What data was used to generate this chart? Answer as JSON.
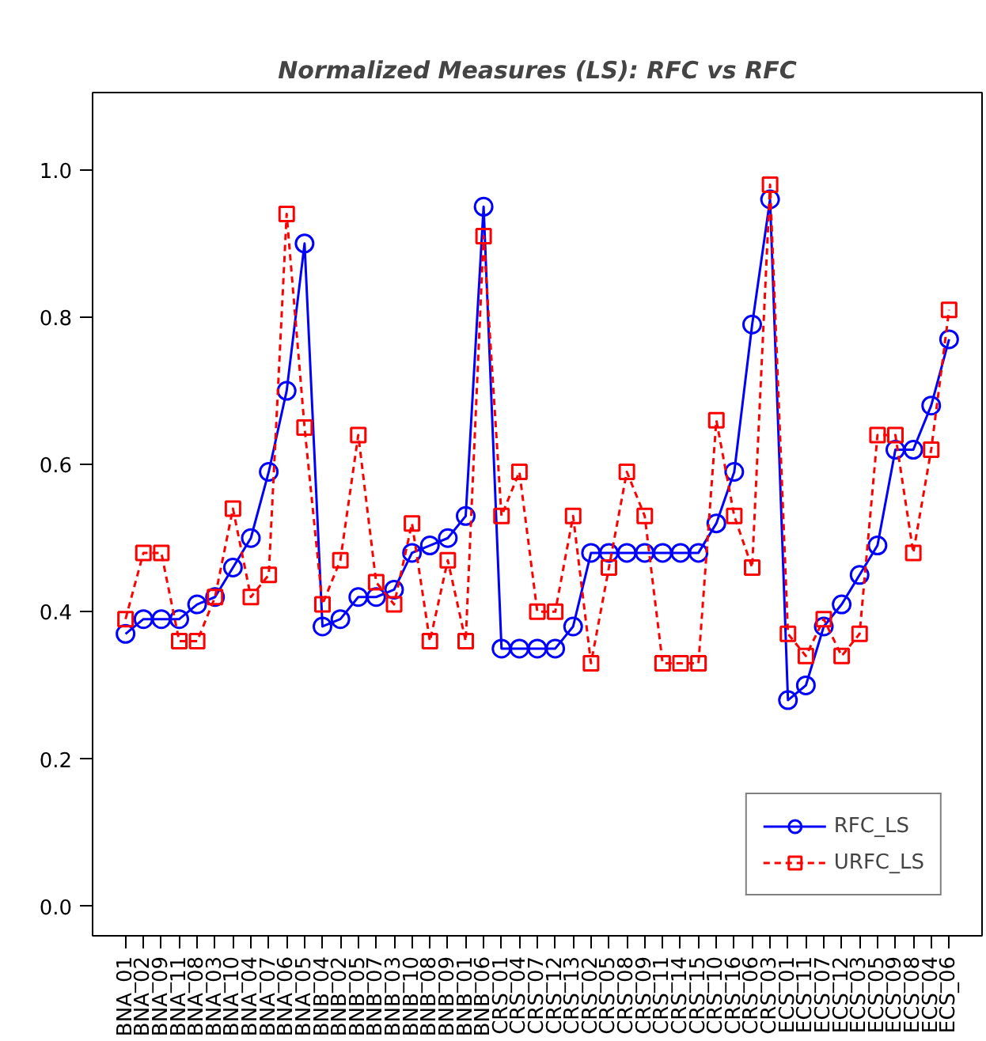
{
  "chart_data": {
    "type": "line",
    "title": "Normalized Measures (LS): RFC vs RFC",
    "categories": [
      "BNA_01",
      "BNA_02",
      "BNA_09",
      "BNA_11",
      "BNA_08",
      "BNA_03",
      "BNA_10",
      "BNA_04",
      "BNA_07",
      "BNA_06",
      "BNA_05",
      "BNB_04",
      "BNB_02",
      "BNB_05",
      "BNB_07",
      "BNB_03",
      "BNB_10",
      "BNB_08",
      "BNB_09",
      "BNB_01",
      "BNB_06",
      "CRS_01",
      "CRS_04",
      "CRS_07",
      "CRS_12",
      "CRS_13",
      "CRS_02",
      "CRS_05",
      "CRS_08",
      "CRS_09",
      "CRS_11",
      "CRS_14",
      "CRS_15",
      "CRS_10",
      "CRS_16",
      "CRS_06",
      "CRS_03",
      "ECS_01",
      "ECS_11",
      "ECS_07",
      "ECS_12",
      "ECS_03",
      "ECS_05",
      "ECS_09",
      "ECS_08",
      "ECS_04",
      "ECS_06"
    ],
    "series": [
      {
        "name": "RFC_LS",
        "color": "#0000ff",
        "marker": "circle",
        "line_style": "solid",
        "values": [
          0.37,
          0.39,
          0.39,
          0.39,
          0.41,
          0.42,
          0.46,
          0.5,
          0.59,
          0.7,
          0.9,
          0.38,
          0.39,
          0.42,
          0.42,
          0.43,
          0.48,
          0.49,
          0.5,
          0.53,
          0.95,
          0.35,
          0.35,
          0.35,
          0.35,
          0.38,
          0.48,
          0.48,
          0.48,
          0.48,
          0.48,
          0.48,
          0.48,
          0.52,
          0.59,
          0.79,
          0.96,
          0.28,
          0.3,
          0.38,
          0.41,
          0.45,
          0.49,
          0.62,
          0.62,
          0.68,
          0.77
        ]
      },
      {
        "name": "URFC_LS",
        "color": "#ff0000",
        "marker": "square",
        "line_style": "dashed",
        "values": [
          0.39,
          0.48,
          0.48,
          0.36,
          0.36,
          0.42,
          0.54,
          0.42,
          0.45,
          0.94,
          0.65,
          0.41,
          0.47,
          0.64,
          0.44,
          0.41,
          0.52,
          0.36,
          0.47,
          0.36,
          0.91,
          0.53,
          0.59,
          0.4,
          0.4,
          0.53,
          0.33,
          0.46,
          0.59,
          0.53,
          0.33,
          0.33,
          0.33,
          0.66,
          0.53,
          0.46,
          0.98,
          0.37,
          0.34,
          0.39,
          0.34,
          0.37,
          0.64,
          0.64,
          0.48,
          0.62,
          0.81
        ]
      }
    ],
    "ylim": [
      -0.04,
      1.105
    ],
    "yticks": [
      {
        "value": 0,
        "label": "0.0"
      },
      {
        "value": 0.2,
        "label": "0.2"
      },
      {
        "value": 0.4,
        "label": "0.4"
      },
      {
        "value": 0.6,
        "label": "0.6"
      },
      {
        "value": 0.8,
        "label": "0.8"
      },
      {
        "value": 1.0,
        "label": "1.0"
      }
    ],
    "grid": false,
    "legend": "bottom right"
  }
}
